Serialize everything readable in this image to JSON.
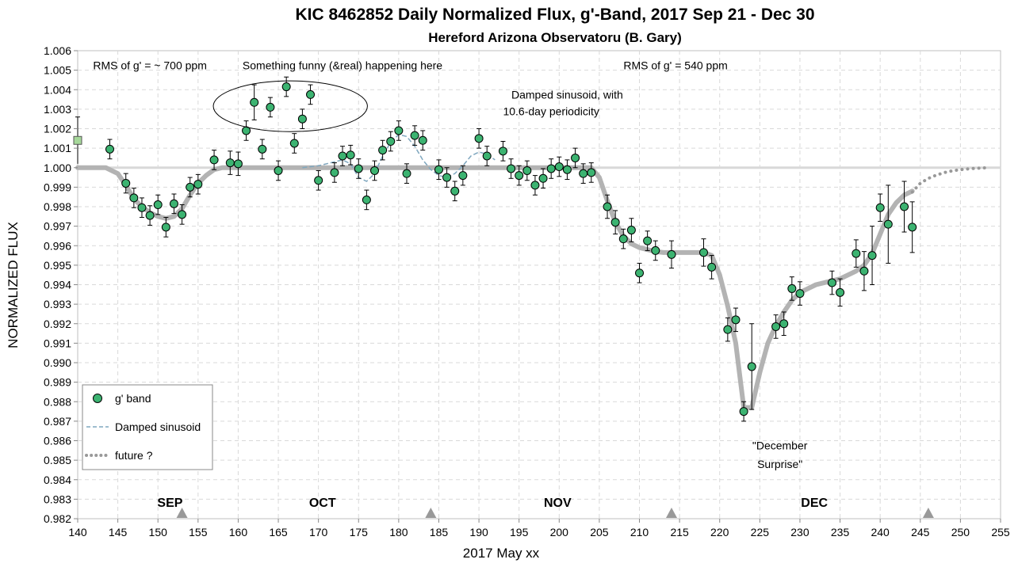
{
  "chart_data": {
    "type": "scatter",
    "title": "KIC 8462852 Daily  Normalized Flux, g'-Band, 2017 Sep 21 - Dec 30",
    "subtitle": "Hereford Arizona Observatoru (B. Gary)",
    "xlabel": "2017 May xx",
    "ylabel": "NORMALIZED FLUX",
    "xlim": [
      140,
      255
    ],
    "ylim": [
      0.982,
      1.006
    ],
    "x_ticks": [
      140,
      145,
      150,
      155,
      160,
      165,
      170,
      175,
      180,
      185,
      190,
      195,
      200,
      205,
      210,
      215,
      220,
      225,
      230,
      235,
      240,
      245,
      250,
      255
    ],
    "y_ticks": [
      "0.982",
      "0.983",
      "0.984",
      "0.985",
      "0.986",
      "0.987",
      "0.988",
      "0.989",
      "0.990",
      "0.991",
      "0.992",
      "0.993",
      "0.994",
      "0.995",
      "0.996",
      "0.997",
      "0.998",
      "0.999",
      "1.000",
      "1.001",
      "1.002",
      "1.003",
      "1.004",
      "1.005",
      "1.006"
    ],
    "grid": true,
    "series": [
      {
        "name": "g' band",
        "color": "#3cb371",
        "points": [
          {
            "x": 144,
            "y": 1.00095,
            "err": 0.0005
          },
          {
            "x": 146,
            "y": 0.9992,
            "err": 0.0005
          },
          {
            "x": 147,
            "y": 0.99845,
            "err": 0.0005
          },
          {
            "x": 148,
            "y": 0.99795,
            "err": 0.0005
          },
          {
            "x": 149,
            "y": 0.99755,
            "err": 0.0005
          },
          {
            "x": 150,
            "y": 0.9981,
            "err": 0.0005
          },
          {
            "x": 151,
            "y": 0.99695,
            "err": 0.0005
          },
          {
            "x": 152,
            "y": 0.99815,
            "err": 0.0005
          },
          {
            "x": 153,
            "y": 0.9976,
            "err": 0.0005
          },
          {
            "x": 154,
            "y": 0.999,
            "err": 0.0005
          },
          {
            "x": 155,
            "y": 0.99915,
            "err": 0.0005
          },
          {
            "x": 157,
            "y": 1.0004,
            "err": 0.0005
          },
          {
            "x": 159,
            "y": 1.00025,
            "err": 0.0006
          },
          {
            "x": 160,
            "y": 1.0002,
            "err": 0.0006
          },
          {
            "x": 161,
            "y": 1.0019,
            "err": 0.0005
          },
          {
            "x": 162,
            "y": 1.00335,
            "err": 0.0009
          },
          {
            "x": 163,
            "y": 1.00095,
            "err": 0.0005
          },
          {
            "x": 164,
            "y": 1.0031,
            "err": 0.0005
          },
          {
            "x": 165,
            "y": 0.99985,
            "err": 0.0005
          },
          {
            "x": 166,
            "y": 1.00415,
            "err": 0.0005
          },
          {
            "x": 167,
            "y": 1.00125,
            "err": 0.0005
          },
          {
            "x": 168,
            "y": 1.0025,
            "err": 0.0005
          },
          {
            "x": 169,
            "y": 1.00375,
            "err": 0.0005
          },
          {
            "x": 170,
            "y": 0.99935,
            "err": 0.0005
          },
          {
            "x": 172,
            "y": 0.99975,
            "err": 0.0005
          },
          {
            "x": 173,
            "y": 1.0006,
            "err": 0.0005
          },
          {
            "x": 174,
            "y": 1.00065,
            "err": 0.0005
          },
          {
            "x": 175,
            "y": 0.99995,
            "err": 0.0005
          },
          {
            "x": 176,
            "y": 0.99835,
            "err": 0.0005
          },
          {
            "x": 177,
            "y": 0.99985,
            "err": 0.0005
          },
          {
            "x": 178,
            "y": 1.0009,
            "err": 0.0005
          },
          {
            "x": 179,
            "y": 1.00135,
            "err": 0.0005
          },
          {
            "x": 180,
            "y": 1.0019,
            "err": 0.0005
          },
          {
            "x": 181,
            "y": 0.9997,
            "err": 0.0005
          },
          {
            "x": 182,
            "y": 1.00165,
            "err": 0.0005
          },
          {
            "x": 183,
            "y": 1.0014,
            "err": 0.0005
          },
          {
            "x": 185,
            "y": 0.9999,
            "err": 0.0005
          },
          {
            "x": 186,
            "y": 0.9995,
            "err": 0.0005
          },
          {
            "x": 187,
            "y": 0.9988,
            "err": 0.0005
          },
          {
            "x": 188,
            "y": 0.9996,
            "err": 0.0005
          },
          {
            "x": 190,
            "y": 1.0015,
            "err": 0.0005
          },
          {
            "x": 191,
            "y": 1.0006,
            "err": 0.0005
          },
          {
            "x": 193,
            "y": 1.00085,
            "err": 0.0005
          },
          {
            "x": 194,
            "y": 0.99995,
            "err": 0.0005
          },
          {
            "x": 195,
            "y": 0.9996,
            "err": 0.0005
          },
          {
            "x": 196,
            "y": 0.99985,
            "err": 0.0005
          },
          {
            "x": 197,
            "y": 0.9991,
            "err": 0.0005
          },
          {
            "x": 198,
            "y": 0.99945,
            "err": 0.0005
          },
          {
            "x": 199,
            "y": 0.99995,
            "err": 0.0005
          },
          {
            "x": 200,
            "y": 1.00005,
            "err": 0.0005
          },
          {
            "x": 201,
            "y": 0.9999,
            "err": 0.0005
          },
          {
            "x": 202,
            "y": 1.0005,
            "err": 0.0005
          },
          {
            "x": 203,
            "y": 0.9997,
            "err": 0.0005
          },
          {
            "x": 204,
            "y": 0.99975,
            "err": 0.0005
          },
          {
            "x": 206,
            "y": 0.998,
            "err": 0.0006
          },
          {
            "x": 207,
            "y": 0.9972,
            "err": 0.0006
          },
          {
            "x": 208,
            "y": 0.99635,
            "err": 0.0005
          },
          {
            "x": 209,
            "y": 0.9968,
            "err": 0.0006
          },
          {
            "x": 210,
            "y": 0.9946,
            "err": 0.0005
          },
          {
            "x": 211,
            "y": 0.99625,
            "err": 0.0005
          },
          {
            "x": 212,
            "y": 0.99575,
            "err": 0.0005
          },
          {
            "x": 214,
            "y": 0.99555,
            "err": 0.0007
          },
          {
            "x": 218,
            "y": 0.99565,
            "err": 0.0007
          },
          {
            "x": 219,
            "y": 0.9949,
            "err": 0.0006
          },
          {
            "x": 221,
            "y": 0.9917,
            "err": 0.0006
          },
          {
            "x": 222,
            "y": 0.9922,
            "err": 0.0006
          },
          {
            "x": 223,
            "y": 0.9875,
            "err": 0.0005
          },
          {
            "x": 224,
            "y": 0.9898,
            "err": 0.0022
          },
          {
            "x": 227,
            "y": 0.99185,
            "err": 0.0006
          },
          {
            "x": 228,
            "y": 0.992,
            "err": 0.0006
          },
          {
            "x": 229,
            "y": 0.9938,
            "err": 0.0006
          },
          {
            "x": 230,
            "y": 0.99355,
            "err": 0.0006
          },
          {
            "x": 234,
            "y": 0.9941,
            "err": 0.0006
          },
          {
            "x": 235,
            "y": 0.9936,
            "err": 0.0007
          },
          {
            "x": 237,
            "y": 0.9956,
            "err": 0.0007
          },
          {
            "x": 238,
            "y": 0.9947,
            "err": 0.001
          },
          {
            "x": 239,
            "y": 0.9955,
            "err": 0.0015
          },
          {
            "x": 240,
            "y": 0.99795,
            "err": 0.0007
          },
          {
            "x": 241,
            "y": 0.9971,
            "err": 0.002
          },
          {
            "x": 243,
            "y": 0.998,
            "err": 0.0013
          },
          {
            "x": 244,
            "y": 0.99695,
            "err": 0.0013
          }
        ]
      },
      {
        "name": "Damped sinusoid",
        "color": "#7fa7bf",
        "x": [
          168,
          170,
          172,
          173,
          174,
          175,
          176,
          177,
          178,
          179,
          180,
          181,
          182,
          183,
          184,
          185,
          186,
          187,
          188,
          189,
          190,
          191,
          192
        ],
        "y": [
          1.0,
          1.0001,
          1.0003,
          1.0004,
          1.0002,
          0.9995,
          0.9993,
          0.9997,
          1.0006,
          1.0013,
          1.0017,
          1.0016,
          1.0011,
          1.0004,
          0.9999,
          0.9996,
          0.9995,
          0.9997,
          1.0001,
          1.0006,
          1.0008,
          1.0007,
          1.0004
        ]
      },
      {
        "name": "future ?",
        "color": "#999999",
        "x": [
          244,
          245,
          246,
          247,
          248,
          249,
          250,
          251,
          252,
          253
        ],
        "y": [
          0.99875,
          0.9992,
          0.99945,
          0.99962,
          0.99975,
          0.99984,
          0.9999,
          0.99994,
          0.99997,
          0.99999
        ]
      }
    ],
    "model_curve": {
      "color": "#b3b3b3",
      "x": [
        140,
        143.5,
        145,
        146,
        147,
        148,
        149,
        150,
        151,
        152,
        153,
        154,
        155,
        156,
        157,
        158,
        159,
        204,
        205,
        206,
        207,
        208,
        209,
        210,
        211,
        212,
        213,
        214,
        215,
        216,
        217,
        218,
        219,
        220,
        221,
        222,
        223,
        224,
        225,
        226,
        227,
        228,
        229,
        230,
        231,
        232,
        233,
        234,
        235,
        236,
        237,
        238,
        239,
        240,
        241,
        242,
        243,
        244
      ],
      "y": [
        1.0,
        1.0,
        0.9997,
        0.9991,
        0.9984,
        0.998,
        0.9977,
        0.9975,
        0.9974,
        0.9975,
        0.9979,
        0.9986,
        0.9992,
        0.9996,
        0.9999,
        1.0,
        1.0,
        1.0,
        0.9995,
        0.9983,
        0.9972,
        0.9965,
        0.9961,
        0.9959,
        0.9958,
        0.9957,
        0.99565,
        0.99565,
        0.99565,
        0.99565,
        0.99565,
        0.99565,
        0.9955,
        0.9945,
        0.9929,
        0.991,
        0.9877,
        0.9877,
        0.9895,
        0.991,
        0.9919,
        0.9926,
        0.9932,
        0.9936,
        0.9938,
        0.994,
        0.9941,
        0.9942,
        0.9943,
        0.9945,
        0.9947,
        0.995,
        0.9956,
        0.9966,
        0.9976,
        0.9982,
        0.9986,
        0.9988
      ]
    },
    "reference_line": {
      "y": 1.0,
      "x_from": 140,
      "x_to": 255,
      "color": "#d9d9d9"
    },
    "extra_point": {
      "x": 140,
      "y": 1.0014,
      "err": 0.0012,
      "color": "#a6d89a"
    },
    "month_labels": [
      {
        "x": 151.5,
        "label": "SEP"
      },
      {
        "x": 170.5,
        "label": "OCT"
      },
      {
        "x": 199.8,
        "label": "NOV"
      },
      {
        "x": 231.8,
        "label": "DEC"
      }
    ],
    "month_markers": [
      153,
      184,
      214,
      246
    ],
    "annotations": [
      {
        "x": 149,
        "y": 1.00525,
        "text": "RMS of g' = ~ 700 ppm"
      },
      {
        "x": 173,
        "y": 1.00525,
        "text": "Something funny (&real) happening here",
        "size": 16
      },
      {
        "x": 201,
        "y": 1.00375,
        "text": "Damped sinusoid, with"
      },
      {
        "x": 199,
        "y": 1.0029,
        "text": "10.6-day periodicity"
      },
      {
        "x": 214.5,
        "y": 1.00525,
        "text": "RMS of g' = 540 ppm"
      },
      {
        "x": 227.5,
        "y": 0.98575,
        "text": "\"December"
      },
      {
        "x": 227.5,
        "y": 0.9848,
        "text": "Surprise\""
      }
    ],
    "highlight_ellipse": {
      "cx": 166.5,
      "cy": 1.00315,
      "rx": 9.6,
      "ry": 0.0013
    },
    "legend": {
      "placement": "bottom-left",
      "items": [
        "g' band",
        "Damped sinusoid",
        "future ?"
      ]
    }
  }
}
